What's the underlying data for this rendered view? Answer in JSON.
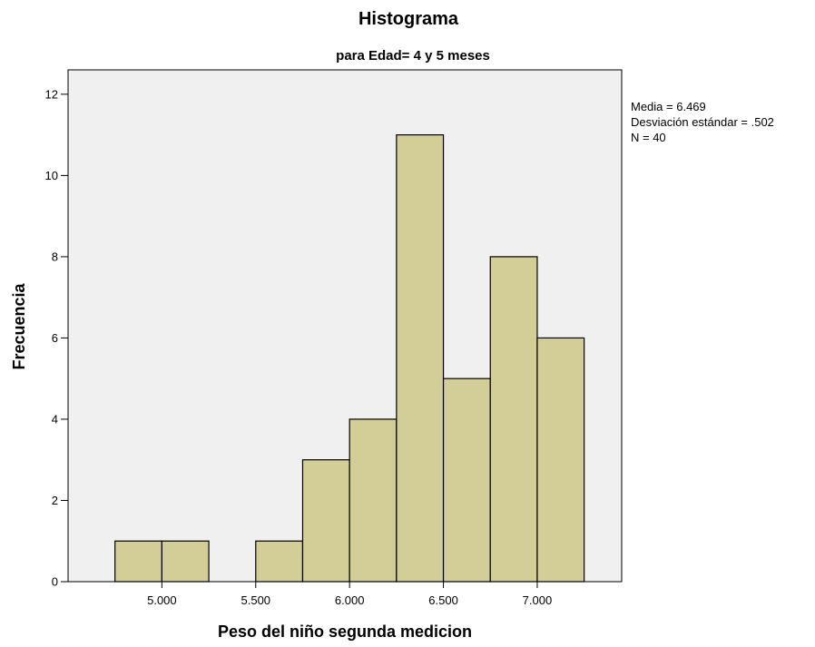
{
  "chart_data": {
    "type": "bar",
    "title": "Histograma",
    "subtitle": "para Edad= 4 y 5 meses",
    "xlabel": "Peso del niño segunda medicion",
    "ylabel": "Frecuencia",
    "bins": [
      {
        "start": 4.75,
        "end": 5.0,
        "value": 1
      },
      {
        "start": 5.0,
        "end": 5.25,
        "value": 1
      },
      {
        "start": 5.25,
        "end": 5.5,
        "value": 0
      },
      {
        "start": 5.5,
        "end": 5.75,
        "value": 1
      },
      {
        "start": 5.75,
        "end": 6.0,
        "value": 3
      },
      {
        "start": 6.0,
        "end": 6.25,
        "value": 4
      },
      {
        "start": 6.25,
        "end": 6.5,
        "value": 11
      },
      {
        "start": 6.5,
        "end": 6.75,
        "value": 5
      },
      {
        "start": 6.75,
        "end": 7.0,
        "value": 8
      },
      {
        "start": 7.0,
        "end": 7.25,
        "value": 6
      }
    ],
    "xlim": [
      4.5,
      7.45
    ],
    "ylim": [
      0,
      12.6
    ],
    "xticks": [
      5.0,
      5.5,
      6.0,
      6.5,
      7.0
    ],
    "xtick_labels": [
      "5.000",
      "5.500",
      "6.000",
      "6.500",
      "7.000"
    ],
    "yticks": [
      0,
      2,
      4,
      6,
      8,
      10,
      12
    ],
    "ytick_labels": [
      "0",
      "2",
      "4",
      "6",
      "8",
      "10",
      "12"
    ],
    "grid": false,
    "plot_background": "#f0f0f0",
    "bar_color": "#d3cd98",
    "stats": {
      "mean": "Media = 6.469",
      "std": "Desviación estándar = .502",
      "n": "N = 40"
    }
  }
}
